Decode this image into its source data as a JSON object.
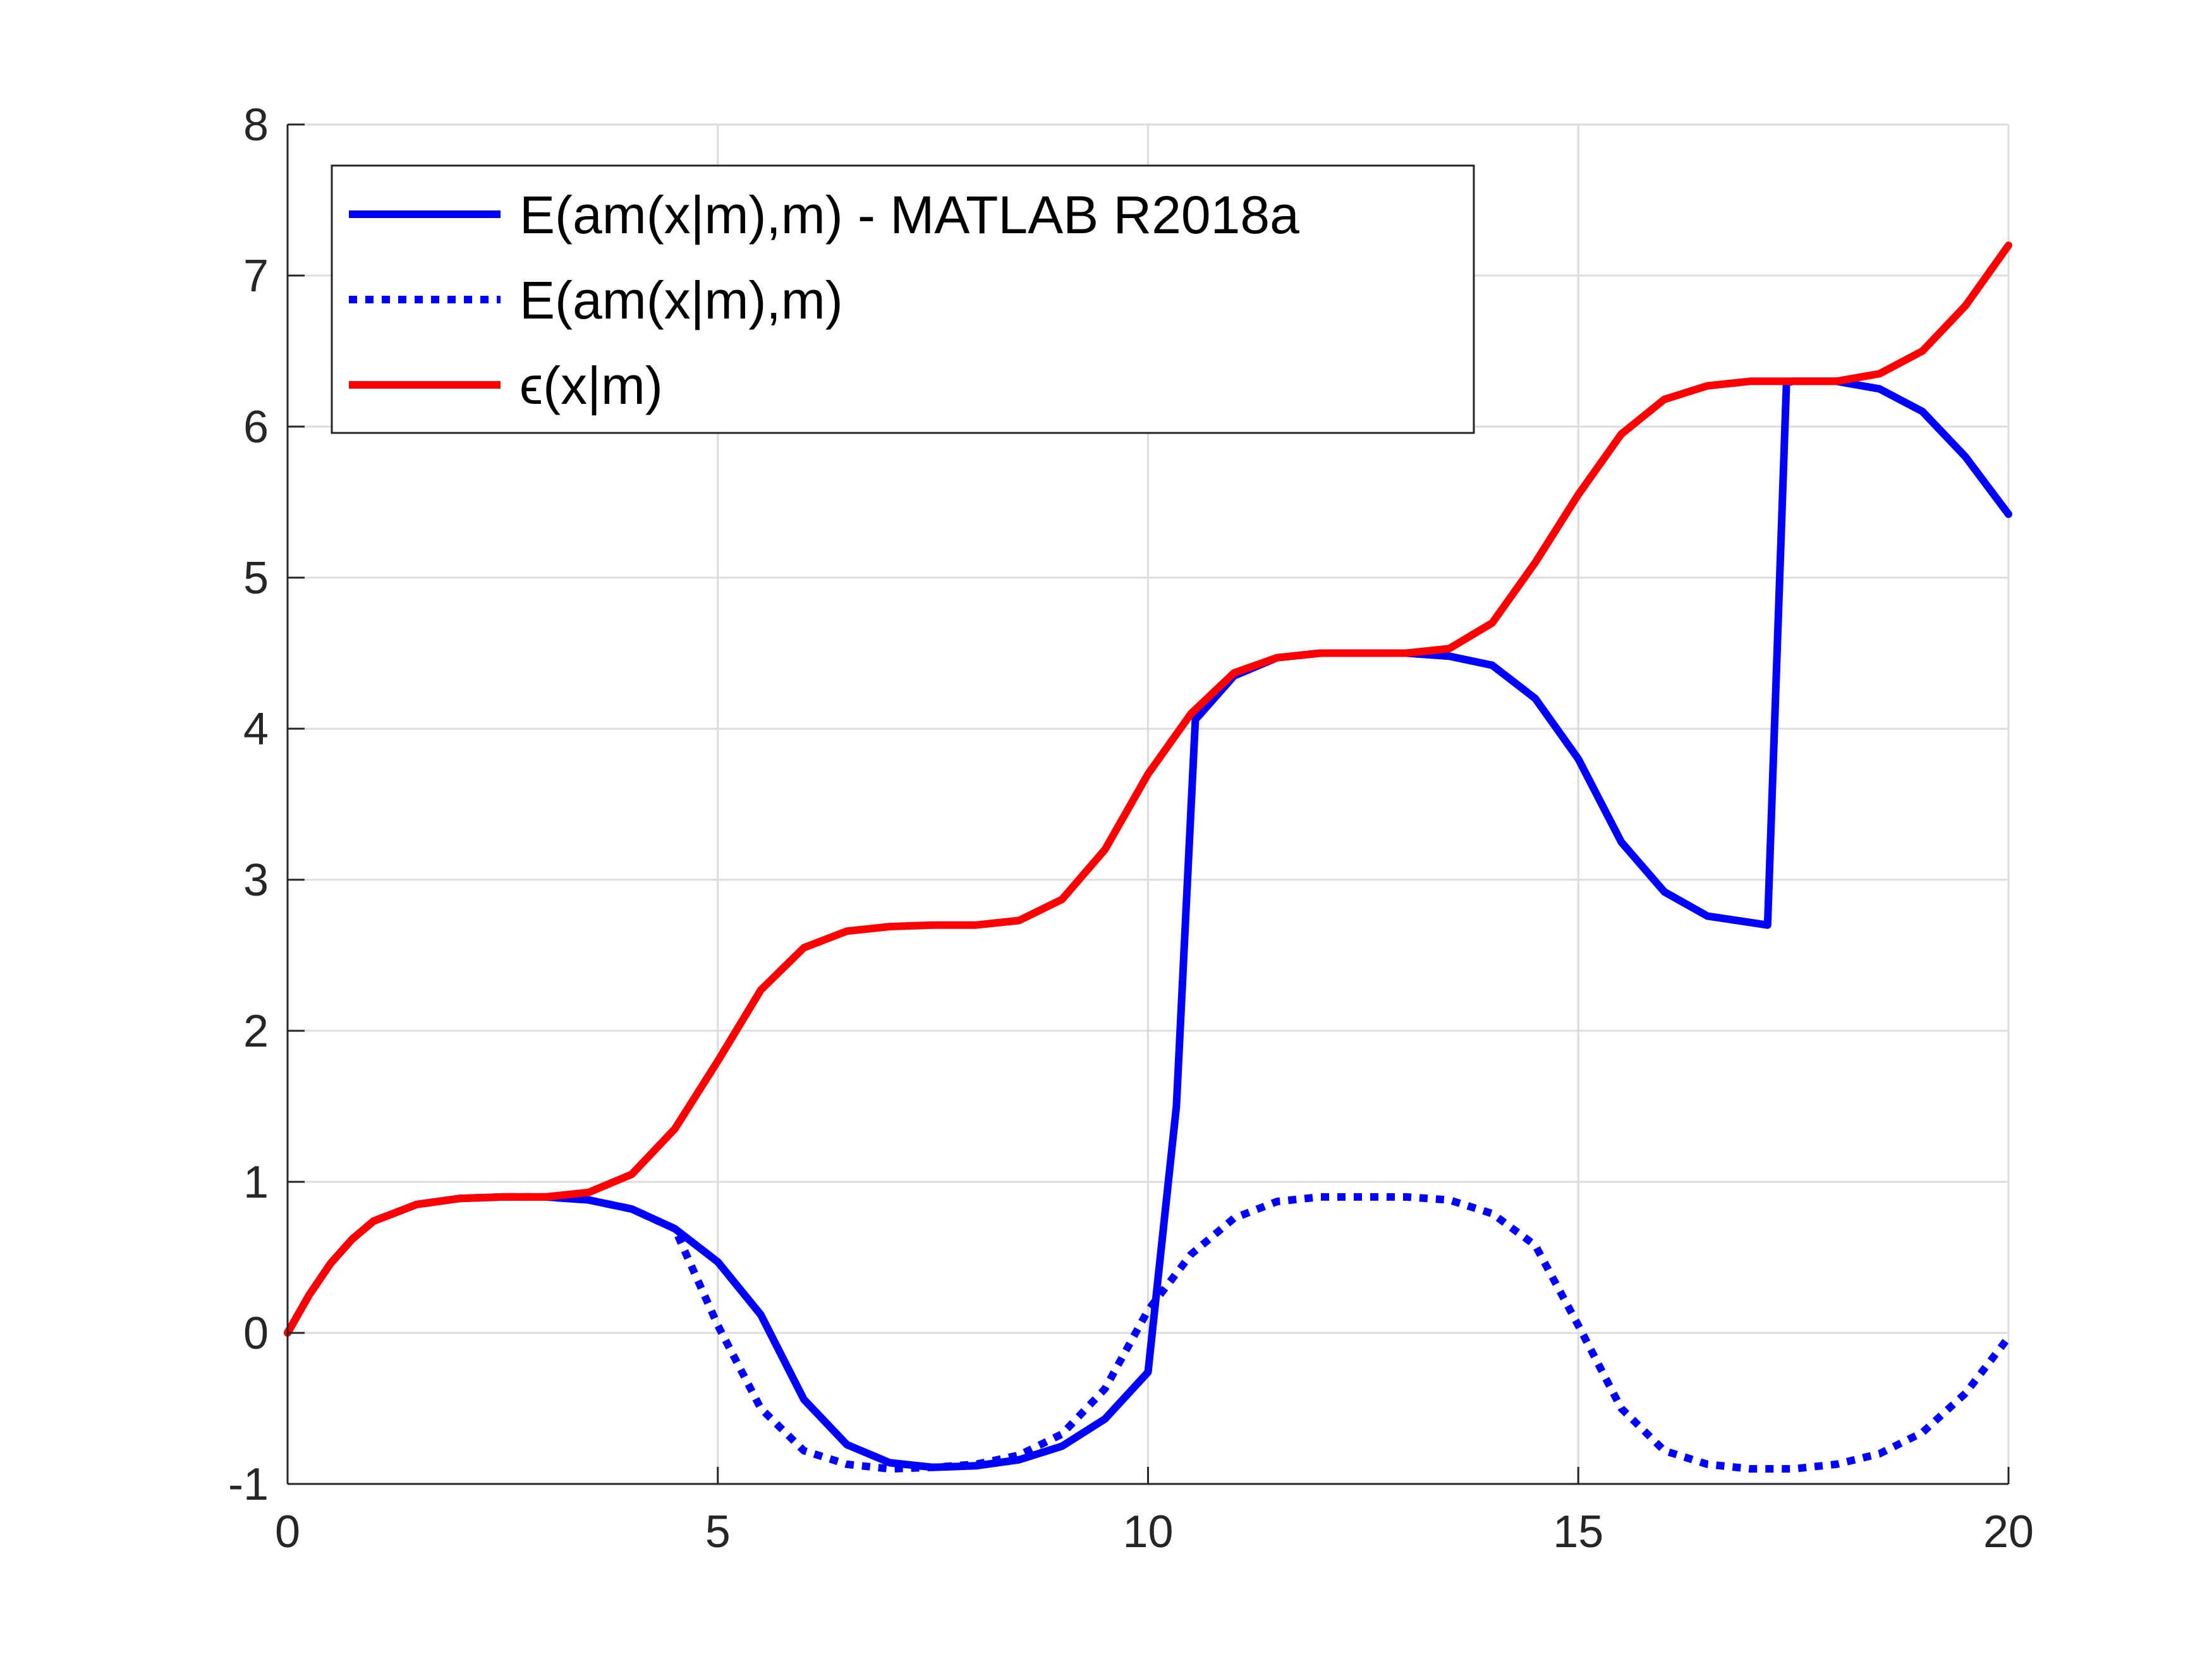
{
  "chart_data": {
    "type": "line",
    "title": "",
    "xlabel": "",
    "ylabel": "",
    "xlim": [
      0,
      20
    ],
    "ylim": [
      -1,
      8
    ],
    "grid": true,
    "legend_position": "top-left",
    "xticks": [
      0,
      5,
      10,
      15,
      20
    ],
    "yticks": [
      -1,
      0,
      1,
      2,
      3,
      4,
      5,
      6,
      7,
      8
    ],
    "xtick_labels": [
      "0",
      "5",
      "10",
      "15",
      "20"
    ],
    "ytick_labels": [
      "-1",
      "0",
      "1",
      "2",
      "3",
      "4",
      "5",
      "6",
      "7",
      "8"
    ],
    "series": [
      {
        "name": "E(am(x|m),m) - MATLAB R2018a",
        "color": "#0000ff",
        "style": "solid",
        "x": [
          0,
          0.25,
          0.5,
          0.75,
          1.0,
          1.5,
          2.0,
          2.5,
          3.0,
          3.5,
          4.0,
          4.5,
          5.0,
          5.5,
          6.0,
          6.5,
          7.0,
          7.5,
          8.0,
          8.5,
          9.0,
          9.5,
          10.0,
          10.33,
          10.55,
          11.0,
          11.5,
          12.0,
          12.5,
          13.0,
          13.5,
          14.0,
          14.5,
          15.0,
          15.5,
          16.0,
          16.5,
          17.2,
          17.42,
          17.5,
          18.0,
          18.5,
          19.0,
          19.5,
          20.0
        ],
        "y": [
          0,
          0.25,
          0.46,
          0.62,
          0.74,
          0.85,
          0.89,
          0.9,
          0.9,
          0.88,
          0.82,
          0.69,
          0.47,
          0.12,
          -0.44,
          -0.74,
          -0.86,
          -0.89,
          -0.88,
          -0.84,
          -0.75,
          -0.57,
          -0.26,
          1.5,
          4.06,
          4.35,
          4.47,
          4.5,
          4.5,
          4.5,
          4.48,
          4.42,
          4.2,
          3.8,
          3.25,
          2.92,
          2.76,
          2.7,
          6.29,
          6.3,
          6.3,
          6.25,
          6.1,
          5.8,
          5.42
        ]
      },
      {
        "name": "E(am(x|m),m)",
        "color": "#0000ff",
        "style": "dotted",
        "x": [
          0,
          0.25,
          0.5,
          0.75,
          1.0,
          1.5,
          2.0,
          2.5,
          3.0,
          3.5,
          4.0,
          4.5,
          5.0,
          5.5,
          6.0,
          6.5,
          7.0,
          7.5,
          8.0,
          8.5,
          9.0,
          9.5,
          10.0,
          10.5,
          11.0,
          11.5,
          12.0,
          12.5,
          13.0,
          13.5,
          14.0,
          14.5,
          15.0,
          15.5,
          16.0,
          16.5,
          17.0,
          17.5,
          18.0,
          18.5,
          19.0,
          19.5,
          20.0
        ],
        "y": [
          0,
          0.25,
          0.46,
          0.62,
          0.74,
          0.85,
          0.89,
          0.9,
          0.9,
          0.88,
          0.82,
          0.69,
          0.05,
          -0.5,
          -0.78,
          -0.87,
          -0.9,
          -0.89,
          -0.87,
          -0.81,
          -0.67,
          -0.37,
          0.15,
          0.52,
          0.76,
          0.87,
          0.9,
          0.9,
          0.9,
          0.88,
          0.79,
          0.58,
          0.05,
          -0.5,
          -0.78,
          -0.87,
          -0.9,
          -0.9,
          -0.87,
          -0.8,
          -0.66,
          -0.4,
          -0.03
        ]
      },
      {
        "name": "ϵ(x|m)",
        "color": "#ff0000",
        "style": "solid",
        "x": [
          0,
          0.25,
          0.5,
          0.75,
          1.0,
          1.5,
          2.0,
          2.5,
          3.0,
          3.5,
          4.0,
          4.5,
          5.0,
          5.5,
          6.0,
          6.5,
          7.0,
          7.5,
          8.0,
          8.5,
          9.0,
          9.5,
          10.0,
          10.5,
          11.0,
          11.5,
          12.0,
          12.5,
          13.0,
          13.5,
          14.0,
          14.5,
          15.0,
          15.5,
          16.0,
          16.5,
          17.0,
          17.5,
          18.0,
          18.5,
          19.0,
          19.5,
          20.0
        ],
        "y": [
          0,
          0.25,
          0.46,
          0.62,
          0.74,
          0.85,
          0.89,
          0.9,
          0.9,
          0.93,
          1.05,
          1.35,
          1.8,
          2.27,
          2.55,
          2.66,
          2.69,
          2.7,
          2.7,
          2.73,
          2.87,
          3.2,
          3.7,
          4.1,
          4.37,
          4.47,
          4.5,
          4.5,
          4.5,
          4.53,
          4.7,
          5.1,
          5.55,
          5.95,
          6.18,
          6.27,
          6.3,
          6.3,
          6.3,
          6.35,
          6.5,
          6.8,
          7.2
        ]
      }
    ]
  }
}
